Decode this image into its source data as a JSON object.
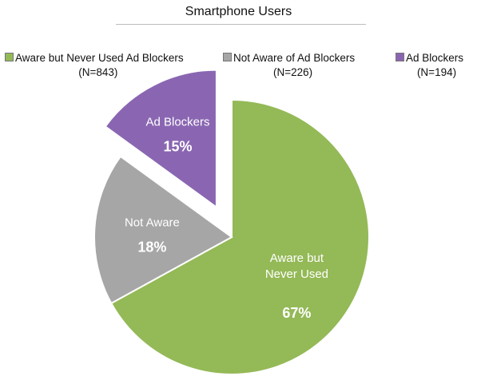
{
  "chart_data": {
    "type": "pie",
    "title": "Smartphone Users",
    "slices": [
      {
        "legend": "Aware but Never Used Ad Blockers",
        "n_label": "(N=843)",
        "label_lines": [
          "Aware but",
          "Never Used"
        ],
        "percent_label": "67%",
        "value": 67,
        "color": "#94b957",
        "exploded": false
      },
      {
        "legend": "Not Aware of Ad Blockers",
        "n_label": "(N=226)",
        "label_lines": [
          "Not Aware"
        ],
        "percent_label": "18%",
        "value": 18,
        "color": "#a6a6a6",
        "exploded": false
      },
      {
        "legend": "Ad Blockers",
        "n_label": "(N=194)",
        "label_lines": [
          "Ad Blockers"
        ],
        "percent_label": "15%",
        "value": 15,
        "color": "#8a66b2",
        "exploded": true
      }
    ]
  }
}
